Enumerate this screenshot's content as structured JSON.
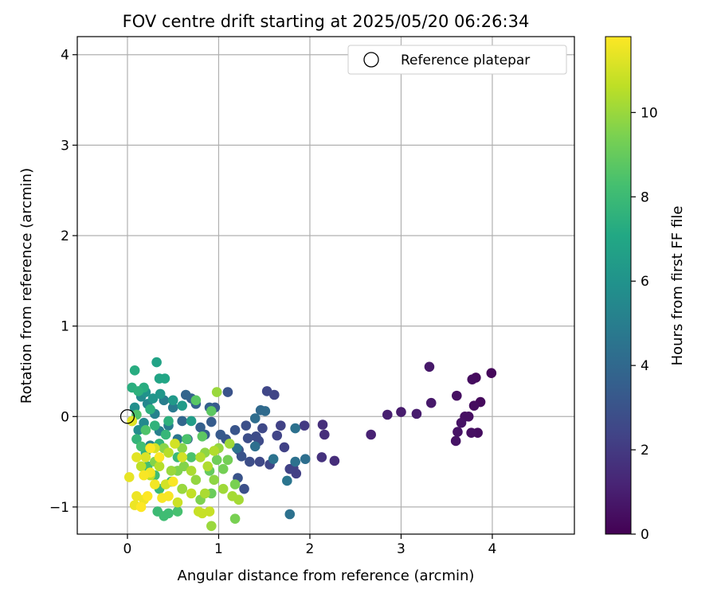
{
  "chart_data": {
    "type": "scatter",
    "title": "FOV centre drift starting at 2025/05/20 06:26:34",
    "xlabel": "Angular distance from reference (arcmin)",
    "ylabel": "Rotation from reference (arcmin)",
    "xlim": [
      -0.55,
      4.9
    ],
    "ylim": [
      -1.3,
      4.2
    ],
    "xticks": [
      0,
      1,
      2,
      3,
      4
    ],
    "yticks": [
      -1,
      0,
      1,
      2,
      3,
      4
    ],
    "grid": true,
    "legend": {
      "placement": "top-right",
      "entries": [
        "Reference platepar"
      ]
    },
    "reference_point": {
      "label": "Reference platepar",
      "x": 0,
      "y": 0,
      "marker": "open-circle"
    },
    "colorbar": {
      "label": "Hours from first FF file",
      "colormap": "viridis",
      "range": [
        0,
        11.8
      ],
      "ticks": [
        0,
        2,
        4,
        6,
        8,
        10
      ]
    },
    "points": [
      {
        "x": 3.99,
        "y": 0.48,
        "c": 0.2
      },
      {
        "x": 3.87,
        "y": 0.16,
        "c": 0.3
      },
      {
        "x": 3.82,
        "y": 0.43,
        "c": 0.3
      },
      {
        "x": 3.78,
        "y": 0.41,
        "c": 0.4
      },
      {
        "x": 3.8,
        "y": 0.12,
        "c": 0.4
      },
      {
        "x": 3.84,
        "y": -0.18,
        "c": 0.4
      },
      {
        "x": 3.77,
        "y": -0.18,
        "c": 0.5
      },
      {
        "x": 3.74,
        "y": 0.0,
        "c": 0.5
      },
      {
        "x": 3.7,
        "y": 0.0,
        "c": 0.5
      },
      {
        "x": 3.66,
        "y": -0.07,
        "c": 0.6
      },
      {
        "x": 3.62,
        "y": -0.17,
        "c": 0.6
      },
      {
        "x": 3.6,
        "y": -0.27,
        "c": 0.6
      },
      {
        "x": 3.61,
        "y": 0.23,
        "c": 0.5
      },
      {
        "x": 3.31,
        "y": 0.55,
        "c": 0.8
      },
      {
        "x": 3.33,
        "y": 0.15,
        "c": 0.8
      },
      {
        "x": 3.17,
        "y": 0.03,
        "c": 0.9
      },
      {
        "x": 3.0,
        "y": 0.05,
        "c": 0.9
      },
      {
        "x": 2.85,
        "y": 0.02,
        "c": 1.0
      },
      {
        "x": 2.67,
        "y": -0.2,
        "c": 1.1
      },
      {
        "x": 2.27,
        "y": -0.49,
        "c": 1.5
      },
      {
        "x": 2.16,
        "y": -0.2,
        "c": 1.6
      },
      {
        "x": 2.14,
        "y": -0.09,
        "c": 1.6
      },
      {
        "x": 2.13,
        "y": -0.45,
        "c": 1.7
      },
      {
        "x": 1.94,
        "y": -0.1,
        "c": 2.0
      },
      {
        "x": 1.85,
        "y": -0.63,
        "c": 2.2
      },
      {
        "x": 1.82,
        "y": -0.57,
        "c": 2.2
      },
      {
        "x": 1.78,
        "y": -0.58,
        "c": 2.3
      },
      {
        "x": 1.72,
        "y": -0.34,
        "c": 2.3
      },
      {
        "x": 1.68,
        "y": -0.1,
        "c": 2.3
      },
      {
        "x": 1.64,
        "y": -0.21,
        "c": 2.4
      },
      {
        "x": 1.61,
        "y": 0.24,
        "c": 2.4
      },
      {
        "x": 1.56,
        "y": -0.53,
        "c": 2.5
      },
      {
        "x": 1.53,
        "y": 0.28,
        "c": 2.5
      },
      {
        "x": 1.48,
        "y": -0.13,
        "c": 2.6
      },
      {
        "x": 1.45,
        "y": -0.5,
        "c": 2.6
      },
      {
        "x": 1.44,
        "y": -0.27,
        "c": 2.7
      },
      {
        "x": 1.41,
        "y": -0.22,
        "c": 2.7
      },
      {
        "x": 1.34,
        "y": -0.5,
        "c": 2.8
      },
      {
        "x": 1.32,
        "y": -0.24,
        "c": 2.8
      },
      {
        "x": 1.3,
        "y": -0.1,
        "c": 2.9
      },
      {
        "x": 1.25,
        "y": -0.44,
        "c": 3.0
      },
      {
        "x": 1.28,
        "y": -0.8,
        "c": 2.9
      },
      {
        "x": 1.21,
        "y": -0.68,
        "c": 3.0
      },
      {
        "x": 1.22,
        "y": -0.37,
        "c": 3.0
      },
      {
        "x": 1.18,
        "y": -0.15,
        "c": 3.1
      },
      {
        "x": 1.1,
        "y": 0.27,
        "c": 3.0
      },
      {
        "x": 1.08,
        "y": -0.25,
        "c": 3.2
      },
      {
        "x": 1.02,
        "y": -0.2,
        "c": 3.3
      },
      {
        "x": 0.96,
        "y": 0.1,
        "c": 3.3
      },
      {
        "x": 0.92,
        "y": -0.06,
        "c": 3.4
      },
      {
        "x": 0.9,
        "y": 0.1,
        "c": 3.6
      },
      {
        "x": 0.85,
        "y": -0.2,
        "c": 3.5
      },
      {
        "x": 0.8,
        "y": -0.12,
        "c": 3.6
      },
      {
        "x": 0.75,
        "y": 0.14,
        "c": 3.6
      },
      {
        "x": 0.7,
        "y": 0.2,
        "c": 3.7
      },
      {
        "x": 0.64,
        "y": 0.24,
        "c": 3.8
      },
      {
        "x": 0.66,
        "y": -0.25,
        "c": 3.8
      },
      {
        "x": 0.6,
        "y": -0.05,
        "c": 3.9
      },
      {
        "x": 1.46,
        "y": 0.07,
        "c": 4.0
      },
      {
        "x": 1.51,
        "y": 0.06,
        "c": 4.1
      },
      {
        "x": 1.4,
        "y": -0.02,
        "c": 4.2
      },
      {
        "x": 1.4,
        "y": -0.33,
        "c": 4.3
      },
      {
        "x": 1.84,
        "y": -0.13,
        "c": 4.4
      },
      {
        "x": 1.84,
        "y": -0.5,
        "c": 4.4
      },
      {
        "x": 1.95,
        "y": -0.47,
        "c": 4.3
      },
      {
        "x": 1.75,
        "y": -0.71,
        "c": 4.6
      },
      {
        "x": 1.78,
        "y": -1.08,
        "c": 4.4
      },
      {
        "x": 1.6,
        "y": -0.47,
        "c": 4.5
      },
      {
        "x": 1.2,
        "y": -0.35,
        "c": 4.5
      },
      {
        "x": 0.55,
        "y": -0.25,
        "c": 4.6
      },
      {
        "x": 0.5,
        "y": 0.1,
        "c": 4.8
      },
      {
        "x": 0.45,
        "y": -0.1,
        "c": 4.9
      },
      {
        "x": 0.4,
        "y": 0.18,
        "c": 5.0
      },
      {
        "x": 0.35,
        "y": -0.16,
        "c": 5.1
      },
      {
        "x": 0.3,
        "y": 0.03,
        "c": 5.2
      },
      {
        "x": 0.25,
        "y": -0.32,
        "c": 5.3
      },
      {
        "x": 0.22,
        "y": 0.14,
        "c": 5.4
      },
      {
        "x": 0.18,
        "y": -0.07,
        "c": 5.5
      },
      {
        "x": 0.15,
        "y": 0.22,
        "c": 5.6
      },
      {
        "x": 0.12,
        "y": -0.15,
        "c": 5.7
      },
      {
        "x": 0.08,
        "y": 0.1,
        "c": 5.8
      },
      {
        "x": 0.05,
        "y": -0.05,
        "c": 5.9
      },
      {
        "x": 0.2,
        "y": 0.27,
        "c": 6.0
      },
      {
        "x": 0.28,
        "y": 0.2,
        "c": 6.1
      },
      {
        "x": 0.36,
        "y": 0.25,
        "c": 6.2
      },
      {
        "x": 0.5,
        "y": 0.18,
        "c": 6.3
      },
      {
        "x": 0.6,
        "y": 0.12,
        "c": 6.4
      },
      {
        "x": 0.7,
        "y": -0.05,
        "c": 6.5
      },
      {
        "x": 0.32,
        "y": 0.6,
        "c": 6.8
      },
      {
        "x": 0.35,
        "y": 0.42,
        "c": 6.9
      },
      {
        "x": 0.41,
        "y": 0.42,
        "c": 7.0
      },
      {
        "x": 0.08,
        "y": 0.51,
        "c": 7.3
      },
      {
        "x": 0.05,
        "y": 0.32,
        "c": 7.4
      },
      {
        "x": 0.18,
        "y": 0.32,
        "c": 7.3
      },
      {
        "x": 0.12,
        "y": 0.28,
        "c": 7.5
      },
      {
        "x": 0.25,
        "y": 0.08,
        "c": 7.5
      },
      {
        "x": 0.45,
        "y": -0.05,
        "c": 7.5
      },
      {
        "x": 0.3,
        "y": -0.1,
        "c": 7.6
      },
      {
        "x": 0.1,
        "y": -0.25,
        "c": 7.7
      },
      {
        "x": 0.2,
        "y": -0.4,
        "c": 7.6
      },
      {
        "x": 0.35,
        "y": -0.3,
        "c": 7.7
      },
      {
        "x": 0.42,
        "y": -0.2,
        "c": 7.8
      },
      {
        "x": 0.55,
        "y": -0.45,
        "c": 7.9
      },
      {
        "x": 0.48,
        "y": -0.72,
        "c": 7.8
      },
      {
        "x": 0.35,
        "y": -0.8,
        "c": 7.9
      },
      {
        "x": 0.33,
        "y": -1.05,
        "c": 8.0
      },
      {
        "x": 0.45,
        "y": -1.07,
        "c": 8.1
      },
      {
        "x": 0.4,
        "y": -1.1,
        "c": 8.1
      },
      {
        "x": 0.3,
        "y": -0.65,
        "c": 8.1
      },
      {
        "x": 0.22,
        "y": -0.55,
        "c": 8.2
      },
      {
        "x": 0.15,
        "y": -0.33,
        "c": 8.2
      },
      {
        "x": 0.55,
        "y": -1.05,
        "c": 8.3
      },
      {
        "x": 0.6,
        "y": -0.8,
        "c": 8.3
      },
      {
        "x": 0.7,
        "y": -0.45,
        "c": 8.4
      },
      {
        "x": 0.65,
        "y": -0.25,
        "c": 8.4
      },
      {
        "x": 0.1,
        "y": 0.02,
        "c": 8.5
      },
      {
        "x": 0.2,
        "y": -0.15,
        "c": 8.5
      },
      {
        "x": 0.75,
        "y": 0.18,
        "c": 8.7
      },
      {
        "x": 0.92,
        "y": 0.06,
        "c": 8.8
      },
      {
        "x": 0.82,
        "y": -0.22,
        "c": 8.8
      },
      {
        "x": 0.9,
        "y": -0.6,
        "c": 9.0
      },
      {
        "x": 0.92,
        "y": -0.85,
        "c": 9.1
      },
      {
        "x": 0.98,
        "y": -0.48,
        "c": 9.2
      },
      {
        "x": 1.05,
        "y": -0.58,
        "c": 9.3
      },
      {
        "x": 1.1,
        "y": -0.48,
        "c": 9.3
      },
      {
        "x": 1.18,
        "y": -0.75,
        "c": 9.4
      },
      {
        "x": 1.18,
        "y": -1.13,
        "c": 9.4
      },
      {
        "x": 0.8,
        "y": -0.92,
        "c": 9.5
      },
      {
        "x": 0.55,
        "y": -0.6,
        "c": 9.5
      },
      {
        "x": 0.62,
        "y": -0.55,
        "c": 9.6
      },
      {
        "x": 0.3,
        "y": -0.5,
        "c": 9.6
      },
      {
        "x": 0.4,
        "y": -0.35,
        "c": 9.7
      },
      {
        "x": 0.6,
        "y": -0.35,
        "c": 9.7
      },
      {
        "x": 0.85,
        "y": -0.4,
        "c": 9.8
      },
      {
        "x": 0.95,
        "y": -0.7,
        "c": 9.8
      },
      {
        "x": 1.0,
        "y": -0.35,
        "c": 9.9
      },
      {
        "x": 0.75,
        "y": -0.7,
        "c": 9.9
      },
      {
        "x": 0.6,
        "y": -0.8,
        "c": 10.0
      },
      {
        "x": 0.48,
        "y": -0.6,
        "c": 10.0
      },
      {
        "x": 0.98,
        "y": 0.27,
        "c": 10.0
      },
      {
        "x": 0.92,
        "y": -1.21,
        "c": 10.0
      },
      {
        "x": 1.05,
        "y": -0.8,
        "c": 10.1
      },
      {
        "x": 1.12,
        "y": -0.3,
        "c": 10.1
      },
      {
        "x": 1.22,
        "y": -0.92,
        "c": 10.2
      },
      {
        "x": 1.15,
        "y": -0.88,
        "c": 10.2
      },
      {
        "x": 0.85,
        "y": -0.85,
        "c": 10.3
      },
      {
        "x": 0.7,
        "y": -0.6,
        "c": 10.3
      },
      {
        "x": 0.8,
        "y": -0.45,
        "c": 10.4
      },
      {
        "x": 0.88,
        "y": -0.55,
        "c": 10.4
      },
      {
        "x": 0.95,
        "y": -0.38,
        "c": 10.4
      },
      {
        "x": 0.35,
        "y": -0.55,
        "c": 10.5
      },
      {
        "x": 0.45,
        "y": -0.4,
        "c": 10.5
      },
      {
        "x": 0.25,
        "y": -0.65,
        "c": 10.6
      },
      {
        "x": 0.15,
        "y": -0.55,
        "c": 10.6
      },
      {
        "x": 0.7,
        "y": -0.85,
        "c": 10.7
      },
      {
        "x": 0.78,
        "y": -1.05,
        "c": 10.8
      },
      {
        "x": 0.82,
        "y": -1.07,
        "c": 10.8
      },
      {
        "x": 0.9,
        "y": -1.05,
        "c": 10.8
      },
      {
        "x": 0.55,
        "y": -0.95,
        "c": 10.9
      },
      {
        "x": 0.42,
        "y": -0.75,
        "c": 11.0
      },
      {
        "x": 0.52,
        "y": -0.3,
        "c": 11.0
      },
      {
        "x": 0.6,
        "y": -0.45,
        "c": 11.0
      },
      {
        "x": 0.3,
        "y": -0.35,
        "c": 11.1
      },
      {
        "x": 0.2,
        "y": -0.45,
        "c": 11.2
      },
      {
        "x": 0.1,
        "y": -0.45,
        "c": 11.3
      },
      {
        "x": 0.05,
        "y": -0.05,
        "c": 11.3
      },
      {
        "x": 0.02,
        "y": -0.67,
        "c": 11.4
      },
      {
        "x": 0.1,
        "y": -0.88,
        "c": 11.5
      },
      {
        "x": 0.08,
        "y": -0.98,
        "c": 11.5
      },
      {
        "x": 0.18,
        "y": -0.92,
        "c": 11.5
      },
      {
        "x": 0.25,
        "y": -0.62,
        "c": 11.6
      },
      {
        "x": 0.3,
        "y": -0.75,
        "c": 11.6
      },
      {
        "x": 0.38,
        "y": -0.9,
        "c": 11.7
      },
      {
        "x": 0.45,
        "y": -0.88,
        "c": 11.7
      },
      {
        "x": 0.5,
        "y": -0.72,
        "c": 11.7
      },
      {
        "x": 0.18,
        "y": -0.65,
        "c": 11.7
      },
      {
        "x": 0.15,
        "y": -1.0,
        "c": 11.8
      },
      {
        "x": 0.22,
        "y": -0.88,
        "c": 11.8
      },
      {
        "x": 0.35,
        "y": -0.45,
        "c": 11.8
      },
      {
        "x": 0.25,
        "y": -0.35,
        "c": 11.8
      }
    ]
  }
}
